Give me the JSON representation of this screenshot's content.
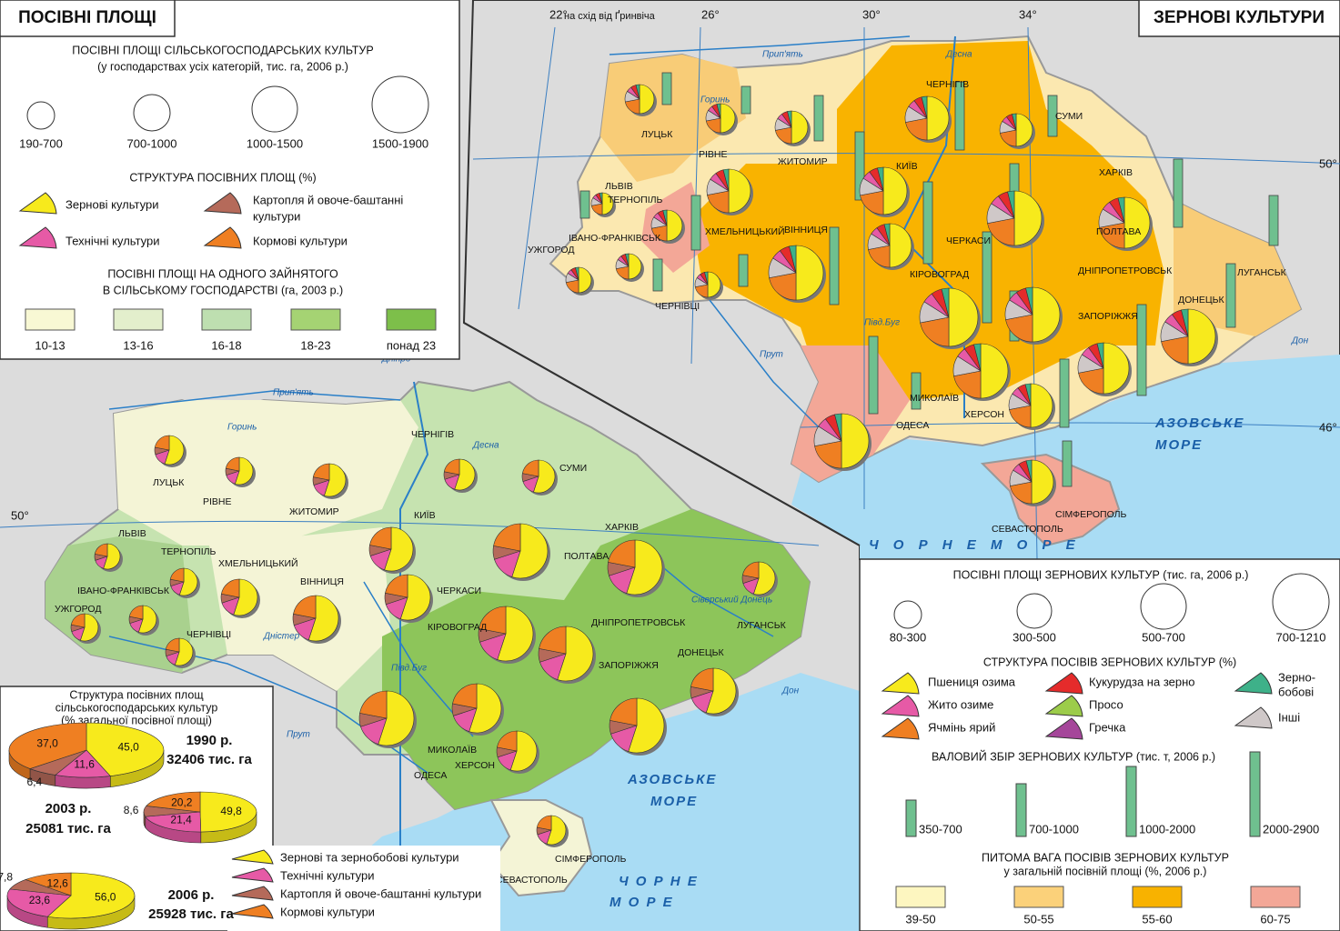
{
  "left_map": {
    "title": "ПОСІВНІ ПЛОЩІ",
    "legend_size_title": "ПОСІВНІ ПЛОЩІ СІЛЬСЬКОГОСПОДАРСЬКИХ КУЛЬТУР",
    "legend_size_subtitle": "(у господарствах усіх категорій, тис. га, 2006 р.)",
    "size_classes": [
      "190-700",
      "700-1000",
      "1000-1500",
      "1500-1900"
    ],
    "structure_title": "СТРУКТУРА ПОСІВНИХ ПЛОЩ (%)",
    "structure_items": [
      "Зернові культури",
      "Картопля й овоче-баштанні",
      "культури",
      "Технічні культури",
      "Кормові культури"
    ],
    "area_title_1": "ПОСІВНІ ПЛОЩІ НА ОДНОГО ЗАЙНЯТОГО",
    "area_title_2": "В СІЛЬСЬКОМУ ГОСПОДАРСТВІ (га, 2003 р.)",
    "area_classes": [
      "10-13",
      "13-16",
      "16-18",
      "18-23",
      "понад 23"
    ],
    "cities": [
      "ЛУЦЬК",
      "РІВНЕ",
      "ЖИТОМИР",
      "ЧЕРНІГІВ",
      "СУМИ",
      "КИЇВ",
      "ЛЬВІВ",
      "ТЕРНОПІЛЬ",
      "ХМЕЛЬНИЦЬКИЙ",
      "ВІННИЦЯ",
      "ЧЕРКАСИ",
      "ПОЛТАВА",
      "ХАРКІВ",
      "ЛУГАНСЬК",
      "ДОНЕЦЬК",
      "ДНІПРОПЕТРОВСЬК",
      "ЗАПОРІЖЖЯ",
      "КІРОВОГРАД",
      "ІВАНО-ФРАНКІВСЬК",
      "УЖГОРОД",
      "ЧЕРНІВЦІ",
      "МИКОЛАЇВ",
      "ХЕРСОН",
      "ОДЕСА",
      "СІМФЕРОПОЛЬ",
      "СЕВАСТОПОЛЬ"
    ],
    "rivers": [
      "Прип'ять",
      "Дніпро",
      "Горинь",
      "Десна",
      "Дністер",
      "Прут",
      "Півд.Буг",
      "Сіверський Донець",
      "Дон"
    ],
    "seas": [
      "АЗОВСЬКЕ",
      "МОРЕ",
      "Ч О Р Н Е",
      "М О Р Е"
    ],
    "latitude": "50°"
  },
  "inset": {
    "title": [
      "Структура посівних площ",
      "сільськогосподарських культур",
      "(% загальної посівної площі)"
    ],
    "legend": [
      "Зернові та зернобобові культури",
      "Технічні культури",
      "Картопля й овоче-баштанні культури",
      "Кормові культури"
    ],
    "charts": [
      {
        "type": "pie",
        "year": "1990 р.",
        "total": "32406 тис. га",
        "values": [
          45.0,
          11.6,
          6.4,
          37.0
        ],
        "value_labels": [
          "45,0",
          "11,6",
          "6,4",
          "37,0"
        ],
        "colors": [
          "#f7ea1c",
          "#e65aa6",
          "#b56a5a",
          "#ef7f22"
        ]
      },
      {
        "type": "pie",
        "year": "2003 р.",
        "total": "25081 тис. га",
        "values": [
          49.8,
          21.4,
          8.6,
          20.2
        ],
        "value_labels": [
          "49,8",
          "21,4",
          "8,6",
          "20,2"
        ],
        "colors": [
          "#f7ea1c",
          "#e65aa6",
          "#b56a5a",
          "#ef7f22"
        ]
      },
      {
        "type": "pie",
        "year": "2006 р.",
        "total": "25928 тис. га",
        "values": [
          56.0,
          23.6,
          7.8,
          12.6
        ],
        "value_labels": [
          "56,0",
          "23,6",
          "7,8",
          "12,6"
        ],
        "colors": [
          "#f7ea1c",
          "#e65aa6",
          "#b56a5a",
          "#ef7f22"
        ]
      }
    ]
  },
  "right_map": {
    "title": "ЗЕРНОВІ КУЛЬТУРИ",
    "longitudes": [
      "22°",
      "на схід від Ґринвіча",
      "26°",
      "30°",
      "34°"
    ],
    "latitudes": [
      "50°",
      "46°"
    ],
    "size_title": "ПОСІВНІ ПЛОЩІ ЗЕРНОВИХ КУЛЬТУР (тис. га, 2006 р.)",
    "size_classes": [
      "80-300",
      "300-500",
      "500-700",
      "700-1210"
    ],
    "structure_title": "СТРУКТУРА ПОСІВІВ ЗЕРНОВИХ КУЛЬТУР (%)",
    "structure_items": [
      "Пшениця озима",
      "Жито озиме",
      "Ячмінь ярий",
      "Кукурудза на зерно",
      "Просо",
      "Гречка",
      "Зерно-",
      "бобові",
      "Інші"
    ],
    "harvest_title": "ВАЛОВИЙ ЗБІР ЗЕРНОВИХ КУЛЬТУР (тис. т, 2006 р.)",
    "harvest_classes": [
      "350-700",
      "700-1000",
      "1000-2000",
      "2000-2900"
    ],
    "share_title_1": "ПИТОМА ВАГА ПОСІВІВ ЗЕРНОВИХ КУЛЬТУР",
    "share_title_2": "у загальній посівній площі (%, 2006 р.)",
    "share_classes": [
      "39-50",
      "50-55",
      "55-60",
      "60-75"
    ],
    "cities": [
      "ЛУЦЬК",
      "РІВНЕ",
      "ЖИТОМИР",
      "ЧЕРНІГІВ",
      "СУМИ",
      "КИЇВ",
      "ЛЬВІВ",
      "ТЕРНОПІЛЬ",
      "ХМЕЛЬНИЦЬКИЙ",
      "ВІННИЦЯ",
      "ЧЕРКАСИ",
      "ПОЛТАВА",
      "ХАРКІВ",
      "ЛУГАНСЬК",
      "ДОНЕЦЬК",
      "ДНІПРОПЕТРОВСЬК",
      "ЗАПОРІЖЖЯ",
      "КІРОВОГРАД",
      "ІВАНО-ФРАНКІВСЬК",
      "УЖГОРОД",
      "ЧЕРНІВЦІ",
      "МИКОЛАЇВ",
      "ХЕРСОН",
      "ОДЕСА",
      "СІМФЕРОПОЛЬ",
      "СЕВАСТОПОЛЬ"
    ],
    "rivers": [
      "Прип'ять",
      "Десна",
      "Горинь",
      "Півд.Буг",
      "Прут",
      "Дон"
    ],
    "seas": [
      "АЗОВСЬКЕ",
      "МОРЕ",
      "Ч О Р Н Е   М О Р Е"
    ]
  }
}
